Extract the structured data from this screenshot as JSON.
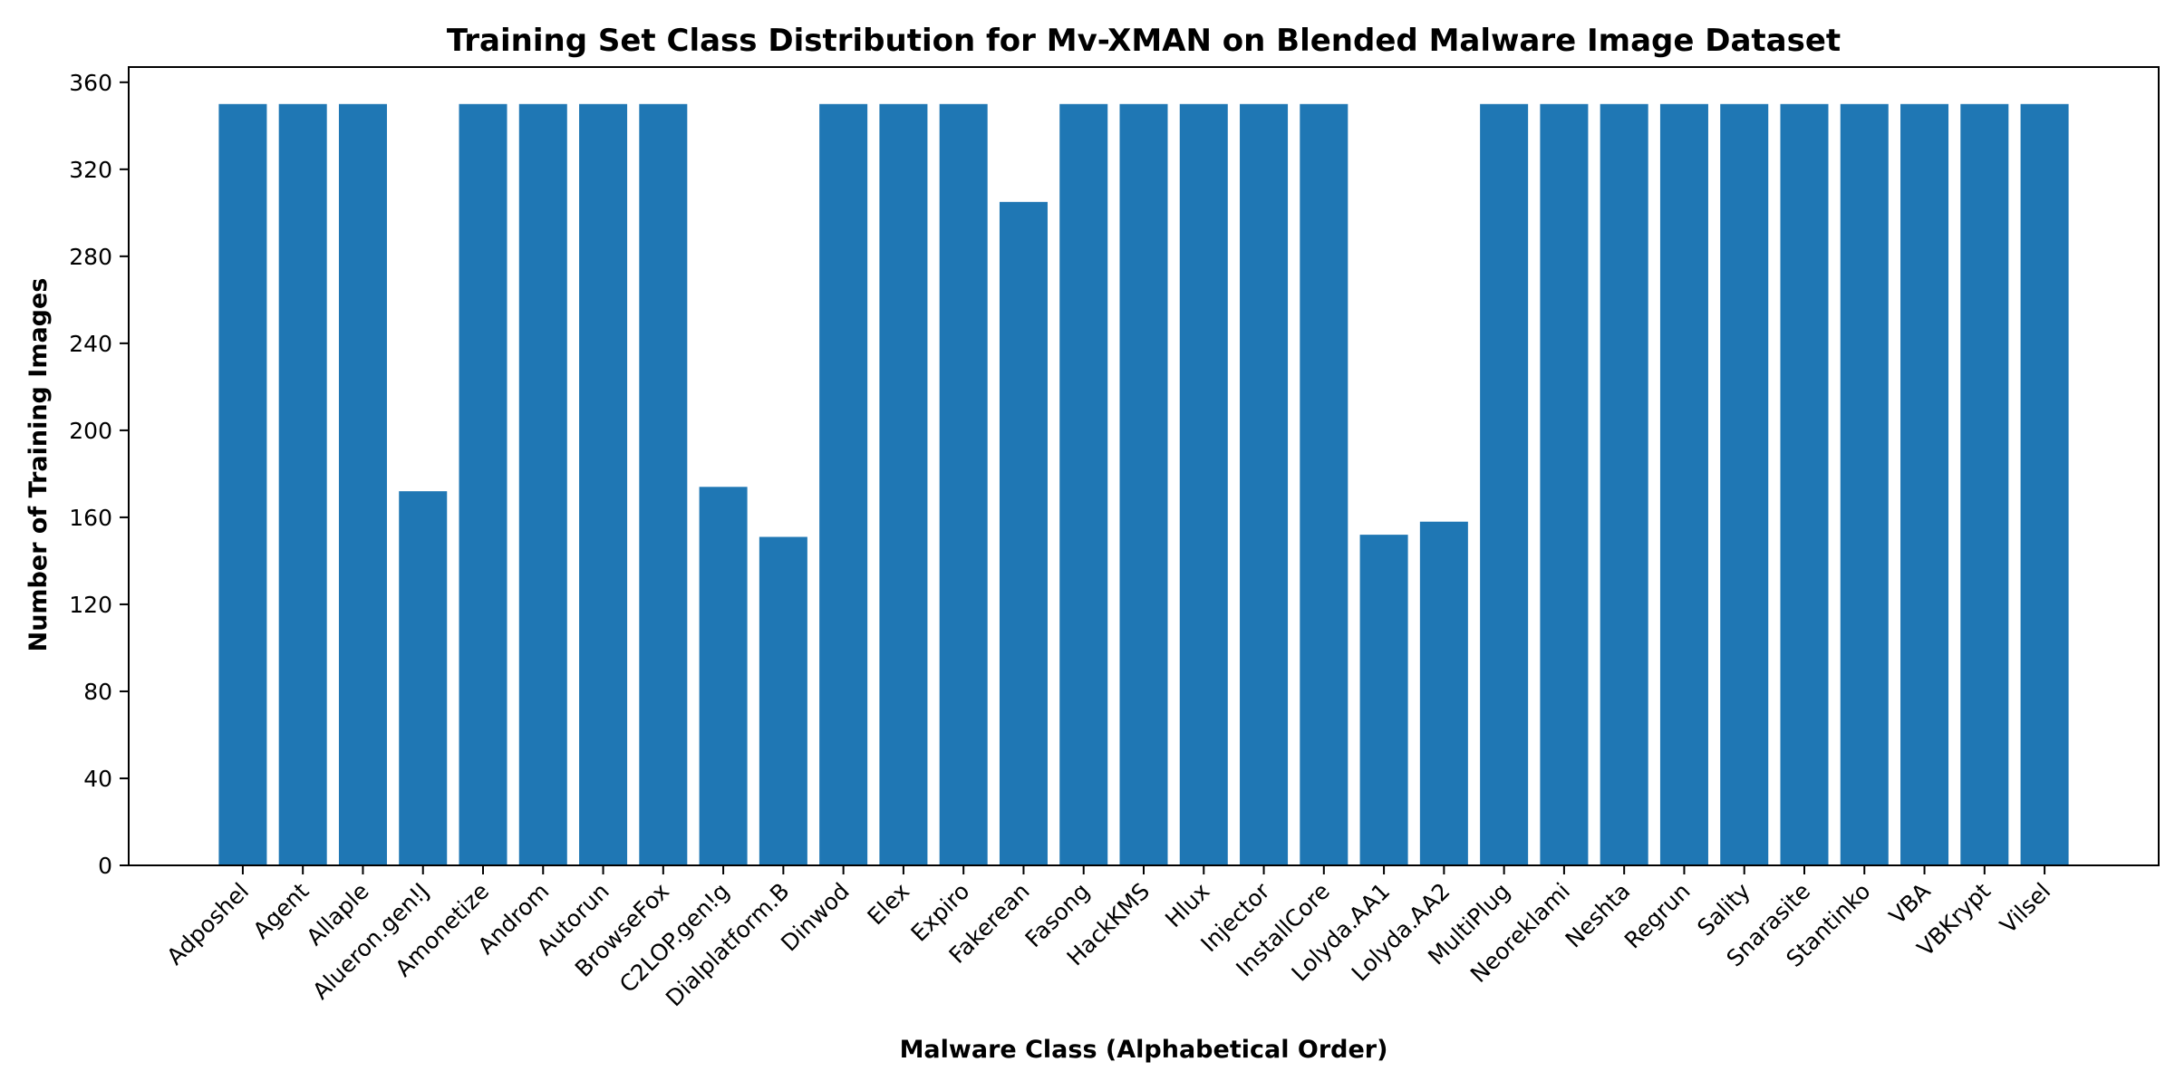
{
  "chart_data": {
    "type": "bar",
    "title": "Training Set Class Distribution for Mv-XMAN on Blended Malware Image Dataset",
    "xlabel": "Malware Class (Alphabetical Order)",
    "ylabel": "Number of Training Images",
    "ylim": [
      0,
      367
    ],
    "yticks": [
      0,
      40,
      80,
      120,
      160,
      200,
      240,
      280,
      320,
      360
    ],
    "grid": false,
    "bar_color": "#1f77b4",
    "categories": [
      "Adposhel",
      "Agent",
      "Allaple",
      "Alueron.gen!J",
      "Amonetize",
      "Androm",
      "Autorun",
      "BrowseFox",
      "C2LOP.gen!g",
      "Dialplatform.B",
      "Dinwod",
      "Elex",
      "Expiro",
      "Fakerean",
      "Fasong",
      "HackKMS",
      "Hlux",
      "Injector",
      "InstallCore",
      "Lolyda.AA1",
      "Lolyda.AA2",
      "MultiPlug",
      "Neoreklami",
      "Neshta",
      "Regrun",
      "Sality",
      "Snarasite",
      "Stantinko",
      "VBA",
      "VBKrypt",
      "Vilsel"
    ],
    "values": [
      350,
      350,
      350,
      172,
      350,
      350,
      350,
      350,
      174,
      151,
      350,
      350,
      350,
      305,
      350,
      350,
      350,
      350,
      350,
      152,
      158,
      350,
      350,
      350,
      350,
      350,
      350,
      350,
      350,
      350,
      350
    ]
  }
}
